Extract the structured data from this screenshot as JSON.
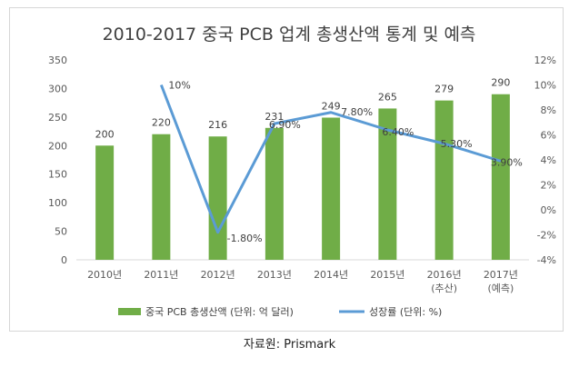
{
  "chart_data": {
    "type": "bar",
    "title": "2010-2017 중국 PCB 업계 총생산액 통계 및 예측",
    "categories": [
      [
        "2010년"
      ],
      [
        "2011년"
      ],
      [
        "2012년"
      ],
      [
        "2013년"
      ],
      [
        "2014년"
      ],
      [
        "2015년"
      ],
      [
        "2016년",
        "(추산)"
      ],
      [
        "2017년",
        "(예측)"
      ]
    ],
    "series": [
      {
        "name": "중국 PCB 총생산액 (단위: 억 달러)",
        "type": "bar",
        "axis": "left",
        "values": [
          200,
          220,
          216,
          231,
          249,
          265,
          279,
          290
        ],
        "labels": [
          "200",
          "220",
          "216",
          "231",
          "249",
          "265",
          "279",
          "290"
        ],
        "color": "#70ad47"
      },
      {
        "name": "성장률 (단위: %)",
        "type": "line",
        "axis": "right",
        "values": [
          null,
          10,
          -1.8,
          6.9,
          7.8,
          6.4,
          5.3,
          3.9
        ],
        "labels": [
          null,
          "10%",
          "-1.80%",
          "6.90%",
          "7.80%",
          "6.40%",
          "5.30%",
          "3.90%"
        ],
        "color": "#5b9bd5"
      }
    ],
    "ylim_left": [
      0,
      350
    ],
    "yticks_left": [
      "0",
      "50",
      "100",
      "150",
      "200",
      "250",
      "300",
      "350"
    ],
    "ylim_right": [
      -4,
      12
    ],
    "yticks_right": [
      "-4%",
      "-2%",
      "0%",
      "2%",
      "4%",
      "6%",
      "8%",
      "10%",
      "12%"
    ],
    "grid": false,
    "legend_position": "bottom"
  },
  "source": "자료원: Prismark"
}
